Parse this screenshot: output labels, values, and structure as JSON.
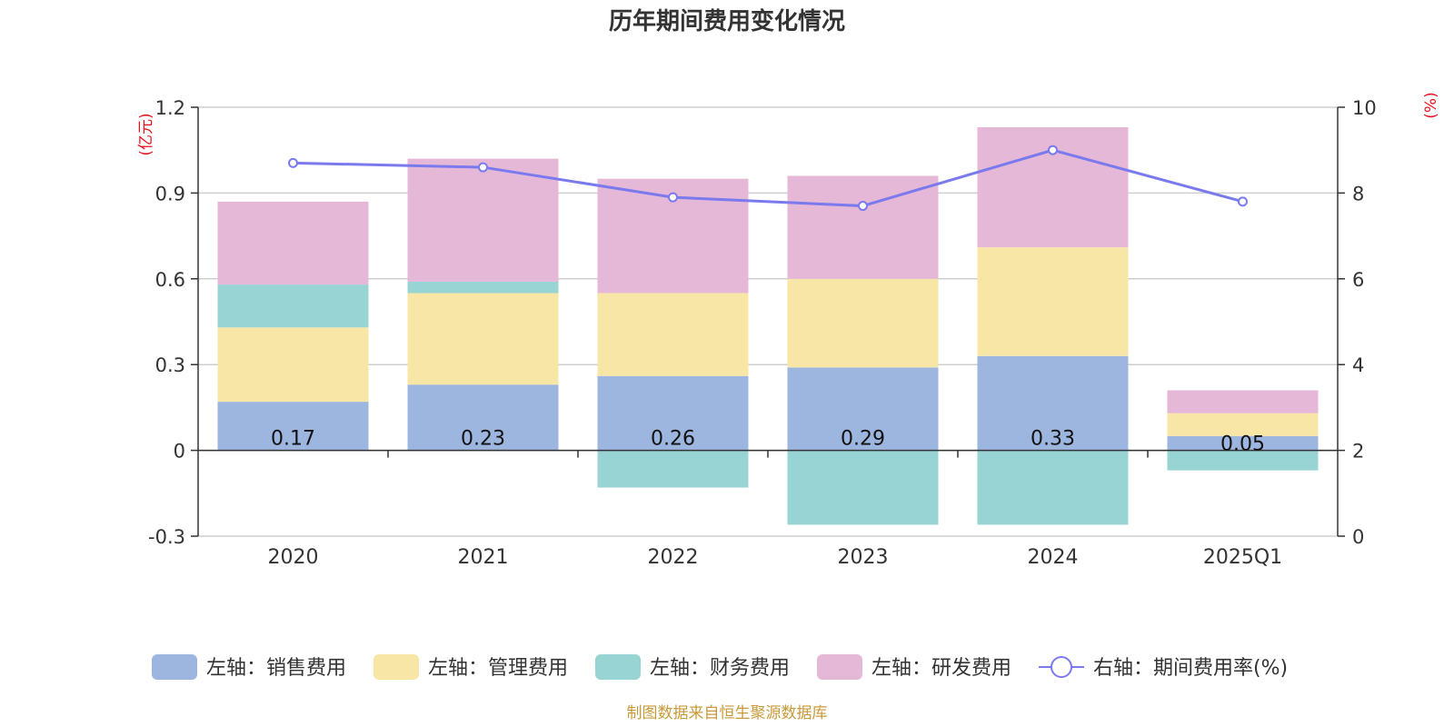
{
  "title": "历年期间费用变化情况",
  "left_axis_unit": "(亿元)",
  "right_axis_unit": "(%)",
  "source": "制图数据来自恒生聚源数据库",
  "colors": {
    "sales": "#9db6e0",
    "admin": "#f7e6a6",
    "finance": "#98d4d4",
    "rd": "#e6b8d8",
    "rate_line": "#7a7aee"
  },
  "chart_data": {
    "type": "bar",
    "stacked": true,
    "title": "历年期间费用变化情况",
    "categories": [
      "2020",
      "2021",
      "2022",
      "2023",
      "2024",
      "2025Q1"
    ],
    "ylim_left": [
      -0.3,
      1.2
    ],
    "yticks_left": [
      "1.2",
      "0.9",
      "0.6",
      "0.3",
      "0",
      "-0.3"
    ],
    "ylim_right": [
      0,
      10
    ],
    "yticks_right": [
      "10",
      "8",
      "6",
      "4",
      "2",
      "0"
    ],
    "series": [
      {
        "name": "左轴：销售费用",
        "key": "sales",
        "axis": "left",
        "type": "bar",
        "values": [
          0.17,
          0.23,
          0.26,
          0.29,
          0.33,
          0.05
        ],
        "labels": [
          "0.17",
          "0.23",
          "0.26",
          "0.29",
          "0.33",
          "0.05"
        ]
      },
      {
        "name": "左轴：管理费用",
        "key": "admin",
        "axis": "left",
        "type": "bar",
        "values": [
          0.26,
          0.32,
          0.29,
          0.31,
          0.38,
          0.08
        ]
      },
      {
        "name": "左轴：财务费用",
        "key": "finance",
        "axis": "left",
        "type": "bar",
        "values": [
          0.15,
          0.04,
          -0.13,
          -0.26,
          -0.26,
          -0.07
        ]
      },
      {
        "name": "左轴：研发费用",
        "key": "rd",
        "axis": "left",
        "type": "bar",
        "values": [
          0.29,
          0.43,
          0.4,
          0.36,
          0.42,
          0.08
        ]
      },
      {
        "name": "右轴：期间费用率(%)",
        "key": "rate_line",
        "axis": "right",
        "type": "line",
        "values": [
          8.7,
          8.6,
          7.9,
          7.7,
          9.0,
          7.8
        ]
      }
    ],
    "grid": true,
    "legend_position": "bottom"
  }
}
